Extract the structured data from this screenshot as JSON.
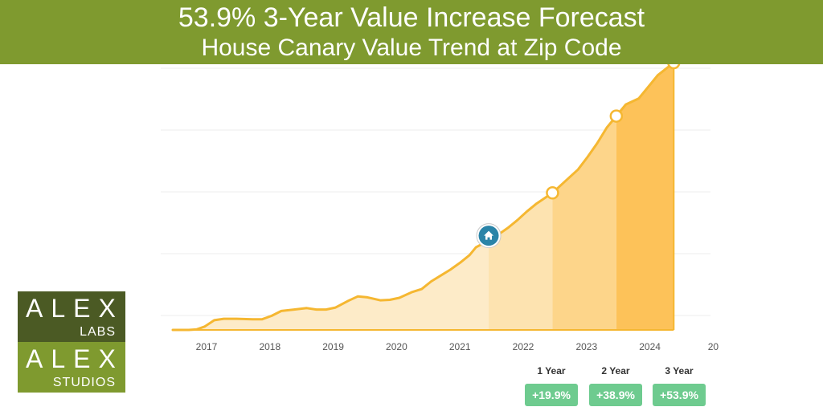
{
  "header": {
    "title": "53.9% 3-Year Value Increase Forecast",
    "subtitle": "House Canary Value Trend at Zip Code"
  },
  "colors": {
    "header_bg": "#7f9a2f",
    "line": "#f5b731",
    "badge": "#6ecb8f",
    "home_marker": "#2a84a8"
  },
  "chart_data": {
    "type": "area",
    "x_tick_labels": [
      "2017",
      "2018",
      "2019",
      "2020",
      "2021",
      "2022",
      "2023",
      "2024",
      "20"
    ],
    "x": [
      2016.55,
      2016.8,
      2016.92,
      2017.05,
      2017.2,
      2017.35,
      2017.55,
      2017.8,
      2017.95,
      2018.1,
      2018.25,
      2018.45,
      2018.65,
      2018.8,
      2018.95,
      2019.1,
      2019.3,
      2019.45,
      2019.6,
      2019.8,
      2019.95,
      2020.1,
      2020.3,
      2020.45,
      2020.6,
      2020.75,
      2020.9,
      2021.05,
      2021.2,
      2021.3,
      2021.5,
      2021.65,
      2021.8,
      2021.95,
      2022.1,
      2022.25,
      2022.5,
      2022.7,
      2022.9,
      2023.05,
      2023.2,
      2023.35,
      2023.5,
      2023.65,
      2023.85,
      2024.0,
      2024.15,
      2024.4
    ],
    "y": [
      0,
      0,
      0.5,
      3.5,
      10,
      11.5,
      11.5,
      11,
      11,
      14.5,
      19.5,
      21,
      22.5,
      21,
      21,
      23,
      30,
      34.5,
      33.5,
      30.5,
      31,
      33,
      39,
      42,
      50,
      56,
      62,
      69,
      77,
      85,
      92,
      98,
      105,
      113,
      122,
      130,
      141,
      153,
      165,
      178,
      192,
      208,
      220,
      232,
      238,
      250,
      262,
      275
    ],
    "y_unit": "value index",
    "ylim": [
      0,
      275
    ],
    "xlim": [
      2016.55,
      2024.9
    ],
    "grid": true,
    "home_marker": {
      "x": 2021.5,
      "y": 92,
      "icon": "house-icon"
    },
    "forecast_points": [
      {
        "x": 2022.5,
        "y": 141,
        "label": "1 Year",
        "change": "+19.9%"
      },
      {
        "x": 2023.5,
        "y": 220,
        "label": "2 Year",
        "change": "+38.9%"
      },
      {
        "x": 2024.4,
        "y": 275,
        "label": "3 Year",
        "change": "+53.9%"
      }
    ]
  },
  "logo": {
    "top_word": "ALEX",
    "top_sub": "LABS",
    "bottom_word": "ALEX",
    "bottom_sub": "STUDIOS"
  }
}
